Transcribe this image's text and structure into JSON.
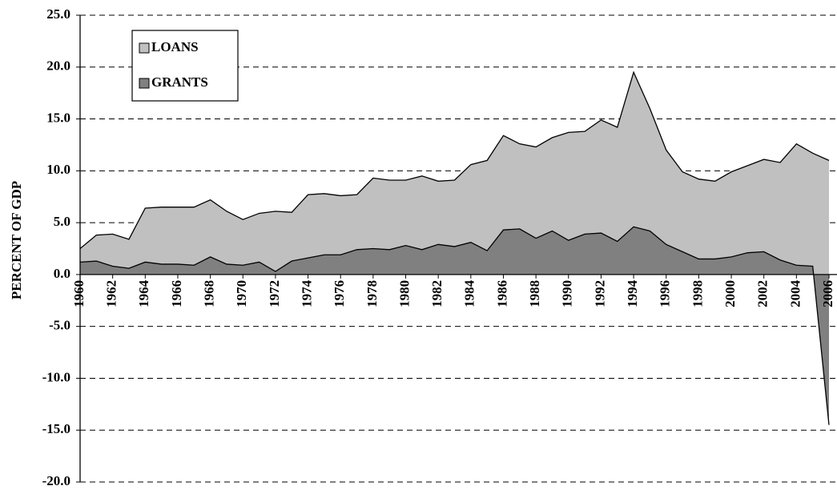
{
  "chart_data": {
    "type": "stacked-area",
    "y_label": "PERCENT OF GDP",
    "x": [
      1960,
      1961,
      1962,
      1963,
      1964,
      1965,
      1966,
      1967,
      1968,
      1969,
      1970,
      1971,
      1972,
      1973,
      1974,
      1975,
      1976,
      1977,
      1978,
      1979,
      1980,
      1981,
      1982,
      1983,
      1984,
      1985,
      1986,
      1987,
      1988,
      1989,
      1990,
      1991,
      1992,
      1993,
      1994,
      1995,
      1996,
      1997,
      1998,
      1999,
      2000,
      2001,
      2002,
      2003,
      2004,
      2005,
      2006
    ],
    "series": [
      {
        "name": "GRANTS",
        "color": "#808080",
        "values": [
          1.2,
          1.3,
          0.8,
          0.6,
          1.2,
          1.0,
          1.0,
          0.9,
          1.7,
          1.0,
          0.9,
          1.2,
          0.3,
          1.3,
          1.6,
          1.9,
          1.9,
          2.4,
          2.5,
          2.4,
          2.8,
          2.4,
          2.9,
          2.7,
          3.1,
          2.3,
          4.3,
          4.4,
          3.5,
          4.2,
          3.3,
          3.9,
          4.0,
          3.2,
          4.6,
          4.2,
          2.9,
          2.2,
          1.5,
          1.5,
          1.7,
          2.1,
          2.2,
          1.4,
          0.9,
          0.8,
          -14.5
        ]
      },
      {
        "name": "LOANS",
        "color": "#c0c0c0",
        "values": [
          1.3,
          2.5,
          3.1,
          2.8,
          5.2,
          5.5,
          5.5,
          5.6,
          5.5,
          5.1,
          4.4,
          4.7,
          5.8,
          4.7,
          6.1,
          5.9,
          5.7,
          5.3,
          6.8,
          6.7,
          6.3,
          7.1,
          6.1,
          6.4,
          7.5,
          8.7,
          9.1,
          8.2,
          8.8,
          9.0,
          10.4,
          9.9,
          10.9,
          11.0,
          14.9,
          11.8,
          9.1,
          7.7,
          7.7,
          7.5,
          8.2,
          8.4,
          8.9,
          9.4,
          11.7,
          10.9,
          25.5
        ]
      }
    ],
    "xlim": [
      1960,
      2006
    ],
    "xticks": [
      1960,
      1962,
      1964,
      1966,
      1968,
      1970,
      1972,
      1974,
      1976,
      1978,
      1980,
      1982,
      1984,
      1986,
      1988,
      1990,
      1992,
      1994,
      1996,
      1998,
      2000,
      2002,
      2004,
      2006
    ],
    "ylim": [
      -20,
      25
    ],
    "yticks": [
      {
        "value": -20,
        "label": "-20.0"
      },
      {
        "value": -15,
        "label": "-15.0"
      },
      {
        "value": -10,
        "label": "-10.0"
      },
      {
        "value": -5,
        "label": "-5.0"
      },
      {
        "value": 0,
        "label": "0.0"
      },
      {
        "value": 5,
        "label": "5.0"
      },
      {
        "value": 10,
        "label": "10.0"
      },
      {
        "value": 15,
        "label": "15.0"
      },
      {
        "value": 20,
        "label": "20.0"
      },
      {
        "value": 25,
        "label": "25.0"
      }
    ],
    "grid": true,
    "legend": "upper left"
  }
}
